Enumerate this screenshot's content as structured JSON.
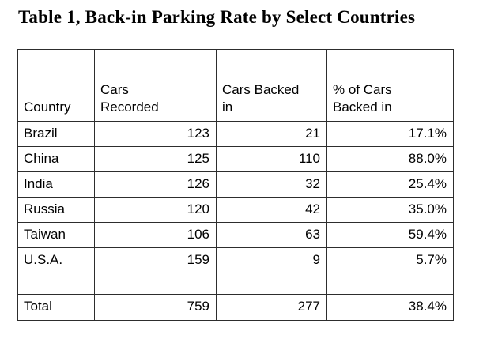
{
  "colors": {
    "background": "#ffffff",
    "text": "#000000",
    "border": "#2d2d2d"
  },
  "chart_data": {
    "type": "table",
    "title": "Table 1, Back-in Parking Rate by Select Countries",
    "columns": [
      "Country",
      "Cars Recorded",
      "Cars Backed in",
      "% of Cars Backed in"
    ],
    "header_display": [
      "Country",
      "Cars\nRecorded",
      "Cars Backed\nin",
      "% of Cars\nBacked in"
    ],
    "rows": [
      [
        "Brazil",
        "123",
        "21",
        "17.1%"
      ],
      [
        "China",
        "125",
        "110",
        "88.0%"
      ],
      [
        "India",
        "126",
        "32",
        "25.4%"
      ],
      [
        "Russia",
        "120",
        "42",
        "35.0%"
      ],
      [
        "Taiwan",
        "106",
        "63",
        "59.4%"
      ],
      [
        "U.S.A.",
        "159",
        "9",
        "5.7%"
      ]
    ],
    "totals": [
      "Total",
      "759",
      "277",
      "38.4%"
    ],
    "values_numeric": {
      "cars_recorded": [
        123,
        125,
        126,
        120,
        106,
        159
      ],
      "cars_backed_in": [
        21,
        110,
        32,
        42,
        63,
        9
      ],
      "pct_backed_in": [
        17.1,
        88.0,
        25.4,
        35.0,
        59.4,
        5.7
      ],
      "total_cars_recorded": 759,
      "total_cars_backed_in": 277,
      "total_pct_backed_in": 38.4
    },
    "layout": {
      "grid": true,
      "header_position": "top",
      "empty_row_before_total": true
    }
  }
}
